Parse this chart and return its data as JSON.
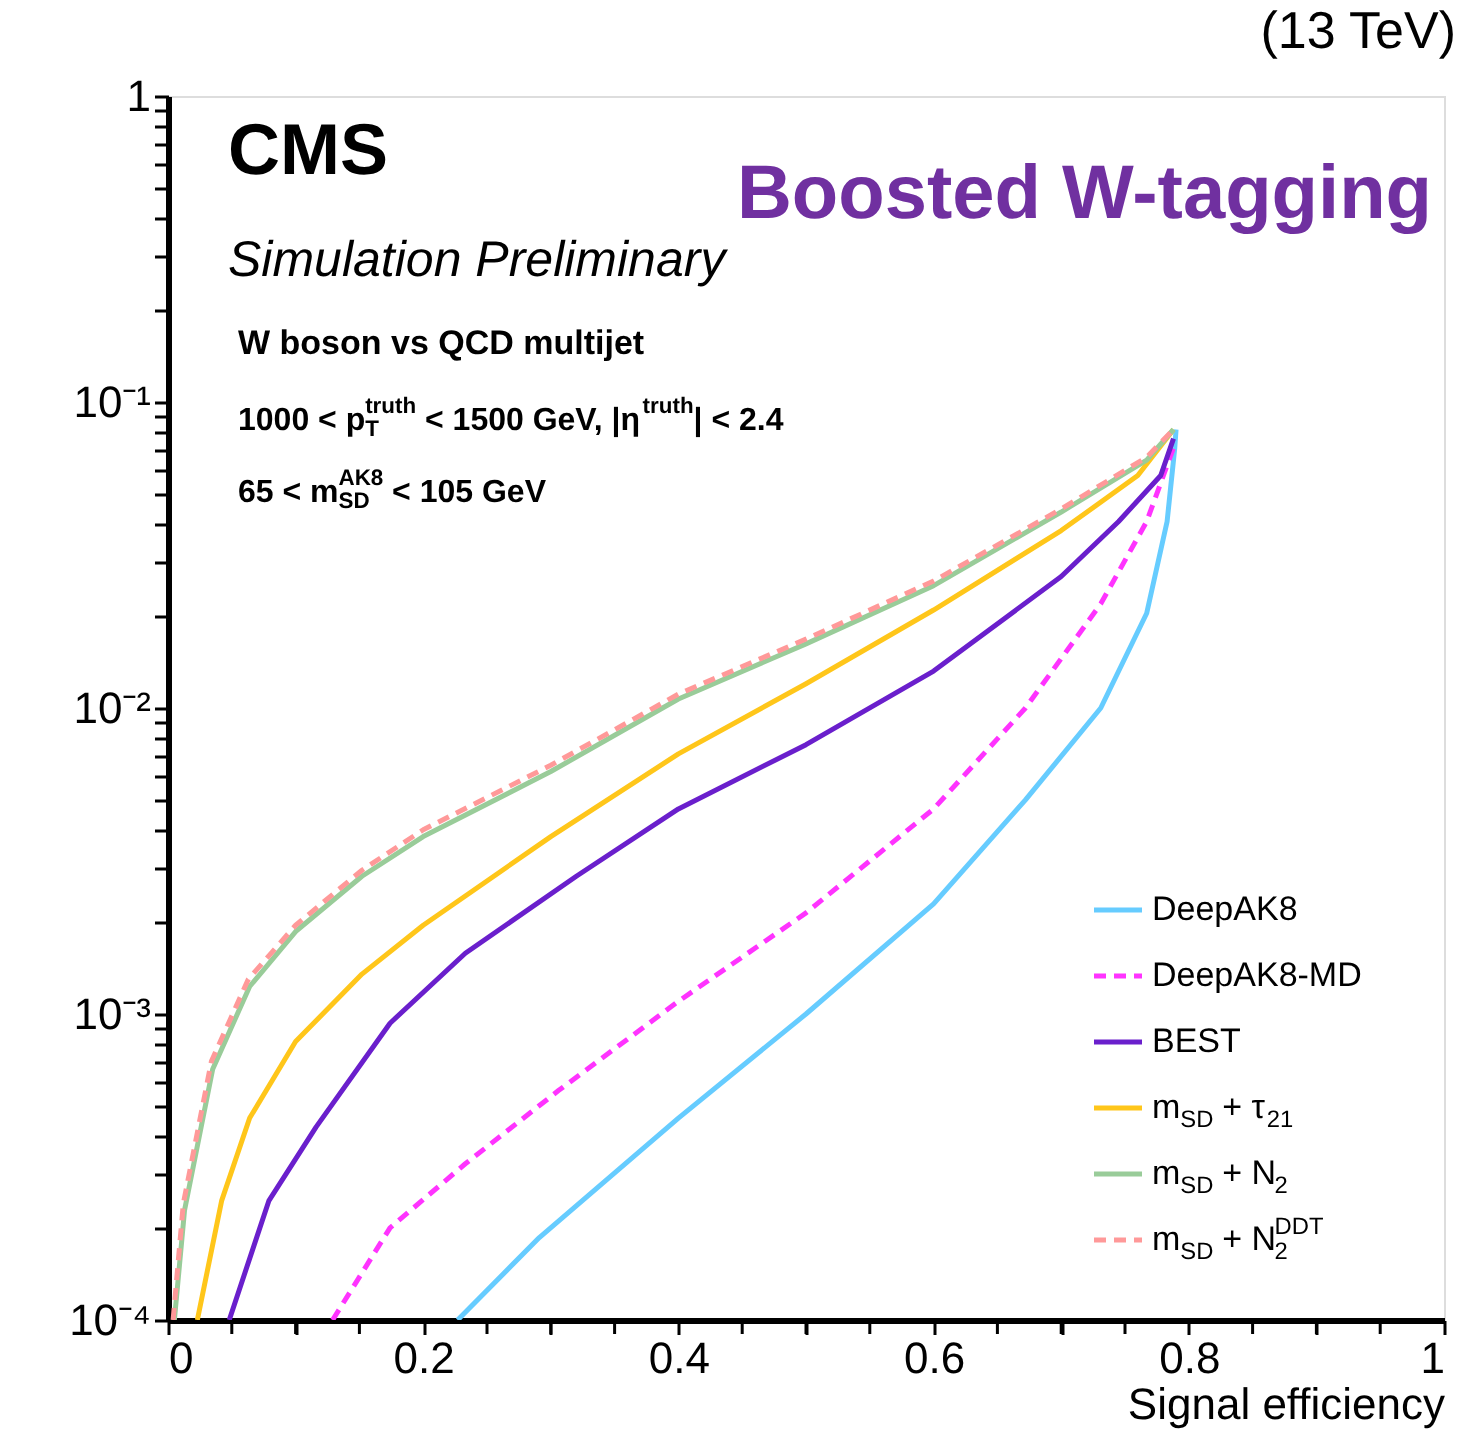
{
  "chart_data": {
    "type": "line",
    "title": "Boosted W-tagging",
    "xlabel": "Signal efficiency",
    "annotations": [
      "(13 TeV)",
      "CMS",
      "Simulation Preliminary",
      "W boson vs QCD multijet",
      "1000 < p$^{truth}$$_{T}$ < 1500 GeV, |η$^{truth}$| < 2.4",
      "65 < m$^{AK8}$$_{SD}$ < 105 GeV"
    ],
    "log": "y",
    "grid": false,
    "legend": "bottom right",
    "marker": "none",
    "xlim": [
      0,
      1
    ],
    "xticks": [
      0,
      {
        "value": 0.05,
        "label": null
      },
      0.2,
      {
        "value": 0.1,
        "label": null
      },
      {
        "value": 0.15,
        "label": null
      },
      {
        "value": 0.25,
        "label": null
      },
      {
        "value": 0.3,
        "label": null
      },
      {
        "value": 0.35,
        "label": null
      },
      0.4,
      {
        "value": 0.45,
        "label": null
      },
      {
        "value": 0.5,
        "label": null
      },
      {
        "value": 0.55,
        "label": null
      },
      0.6,
      {
        "value": 0.65,
        "label": null
      },
      {
        "value": 0.7,
        "label": null
      },
      {
        "value": 0.75,
        "label": null
      },
      0.8,
      {
        "value": 0.85,
        "label": null
      },
      {
        "value": 0.9,
        "label": null
      },
      {
        "value": 0.95,
        "label": null
      },
      1
    ],
    "ylim": [
      0.0001,
      1
    ],
    "yticks": [
      {
        "value": 0.0001,
        "label": "10⁻⁴"
      },
      {
        "value": 0.001,
        "label": "10⁻³"
      },
      {
        "value": 0.01,
        "label": "10⁻²"
      },
      {
        "value": 0.1,
        "label": "10⁻¹"
      },
      1,
      {
        "value": 0.0002,
        "label": null
      },
      {
        "value": 0.0003,
        "label": null
      },
      {
        "value": 0.0004,
        "label": null
      },
      {
        "value": 0.0005,
        "label": null
      },
      {
        "value": 0.0006,
        "label": null
      },
      {
        "value": 0.0007,
        "label": null
      },
      {
        "value": 0.0008,
        "label": null
      },
      {
        "value": 0.0009,
        "label": null
      },
      {
        "value": 0.002,
        "label": null
      },
      {
        "value": 0.003,
        "label": null
      },
      {
        "value": 0.004,
        "label": null
      },
      {
        "value": 0.005,
        "label": null
      },
      {
        "value": 0.006,
        "label": null
      },
      {
        "value": 0.007,
        "label": null
      },
      {
        "value": 0.008,
        "label": null
      },
      {
        "value": 0.009,
        "label": null
      },
      {
        "value": 0.02,
        "label": null
      },
      {
        "value": 0.03,
        "label": null
      },
      {
        "value": 0.04,
        "label": null
      },
      {
        "value": 0.05,
        "label": null
      },
      {
        "value": 0.06,
        "label": null
      },
      {
        "value": 0.07,
        "label": null
      },
      {
        "value": 0.08,
        "label": null
      },
      {
        "value": 0.09,
        "label": null
      },
      {
        "value": 0.2,
        "label": null
      },
      {
        "value": 0.3,
        "label": null
      },
      {
        "value": 0.4,
        "label": null
      },
      {
        "value": 0.5,
        "label": null
      },
      {
        "value": 0.6,
        "label": null
      },
      {
        "value": 0.7,
        "label": null
      },
      {
        "value": 0.8,
        "label": null
      },
      {
        "value": 0.9,
        "label": null
      }
    ],
    "series": [
      {
        "name": "DeepAK8",
        "color": "#66ccff",
        "line_style": "solid",
        "x": [
          0.227,
          0.291,
          0.4,
          0.5,
          0.6,
          0.672,
          0.731,
          0.767,
          0.783,
          0.789,
          0.79
        ],
        "values": [
          0.0001,
          0.000186,
          0.000457,
          0.001,
          0.00229,
          0.00501,
          0.01,
          0.0204,
          0.0407,
          0.0708,
          0.0813
        ]
      },
      {
        "name": "DeepAK8-MD",
        "color": "#ff33ff",
        "line_style": "dashed",
        "x": [
          0.129,
          0.174,
          0.233,
          0.306,
          0.4,
          0.5,
          0.6,
          0.672,
          0.731,
          0.767,
          0.788
        ],
        "values": [
          0.0001,
          0.0002,
          0.000324,
          0.000562,
          0.0011,
          0.00214,
          0.00468,
          0.01,
          0.0219,
          0.0407,
          0.0708
        ]
      },
      {
        "name": "BEST",
        "color": "#6a1fcc",
        "line_style": "solid",
        "x": [
          0.048,
          0.079,
          0.116,
          0.174,
          0.233,
          0.32,
          0.4,
          0.5,
          0.6,
          0.7,
          0.745,
          0.778,
          0.788
        ],
        "values": [
          0.0001,
          0.000245,
          0.000427,
          0.000933,
          0.00158,
          0.00282,
          0.00468,
          0.00759,
          0.0132,
          0.0269,
          0.0407,
          0.0575,
          0.0759
        ]
      },
      {
        "name": "m$_{SD}$ + τ$_{21}$",
        "color": "#ffc61a",
        "line_style": "solid",
        "x": [
          0.023,
          0.042,
          0.064,
          0.1,
          0.152,
          0.2,
          0.3,
          0.4,
          0.5,
          0.6,
          0.7,
          0.76,
          0.788
        ],
        "values": [
          0.0001,
          0.000245,
          0.000457,
          0.000813,
          0.00135,
          0.00195,
          0.0038,
          0.00708,
          0.012,
          0.0209,
          0.038,
          0.0575,
          0.0813
        ]
      },
      {
        "name": "m$_{SD}$ + N$_{2}$",
        "color": "#99cc99",
        "line_style": "solid",
        "x": [
          0.005,
          0.013,
          0.035,
          0.064,
          0.1,
          0.152,
          0.2,
          0.3,
          0.4,
          0.5,
          0.6,
          0.7,
          0.767,
          0.788
        ],
        "values": [
          0.0001,
          0.000229,
          0.00066,
          0.00123,
          0.00186,
          0.00282,
          0.0038,
          0.0062,
          0.0107,
          0.0162,
          0.0251,
          0.0437,
          0.0646,
          0.0813
        ]
      },
      {
        "name": "m$_{SD}$ + N$_{2}$$^{DDT}$",
        "color": "#ff9999",
        "line_style": "dashed",
        "x": [
          0.004,
          0.012,
          0.034,
          0.063,
          0.1,
          0.152,
          0.2,
          0.3,
          0.4,
          0.5,
          0.6,
          0.7,
          0.767,
          0.788
        ],
        "values": [
          0.0001,
          0.00024,
          0.0007,
          0.0013,
          0.00195,
          0.00295,
          0.004,
          0.0065,
          0.0111,
          0.0168,
          0.026,
          0.0447,
          0.066,
          0.0813
        ]
      }
    ]
  }
}
